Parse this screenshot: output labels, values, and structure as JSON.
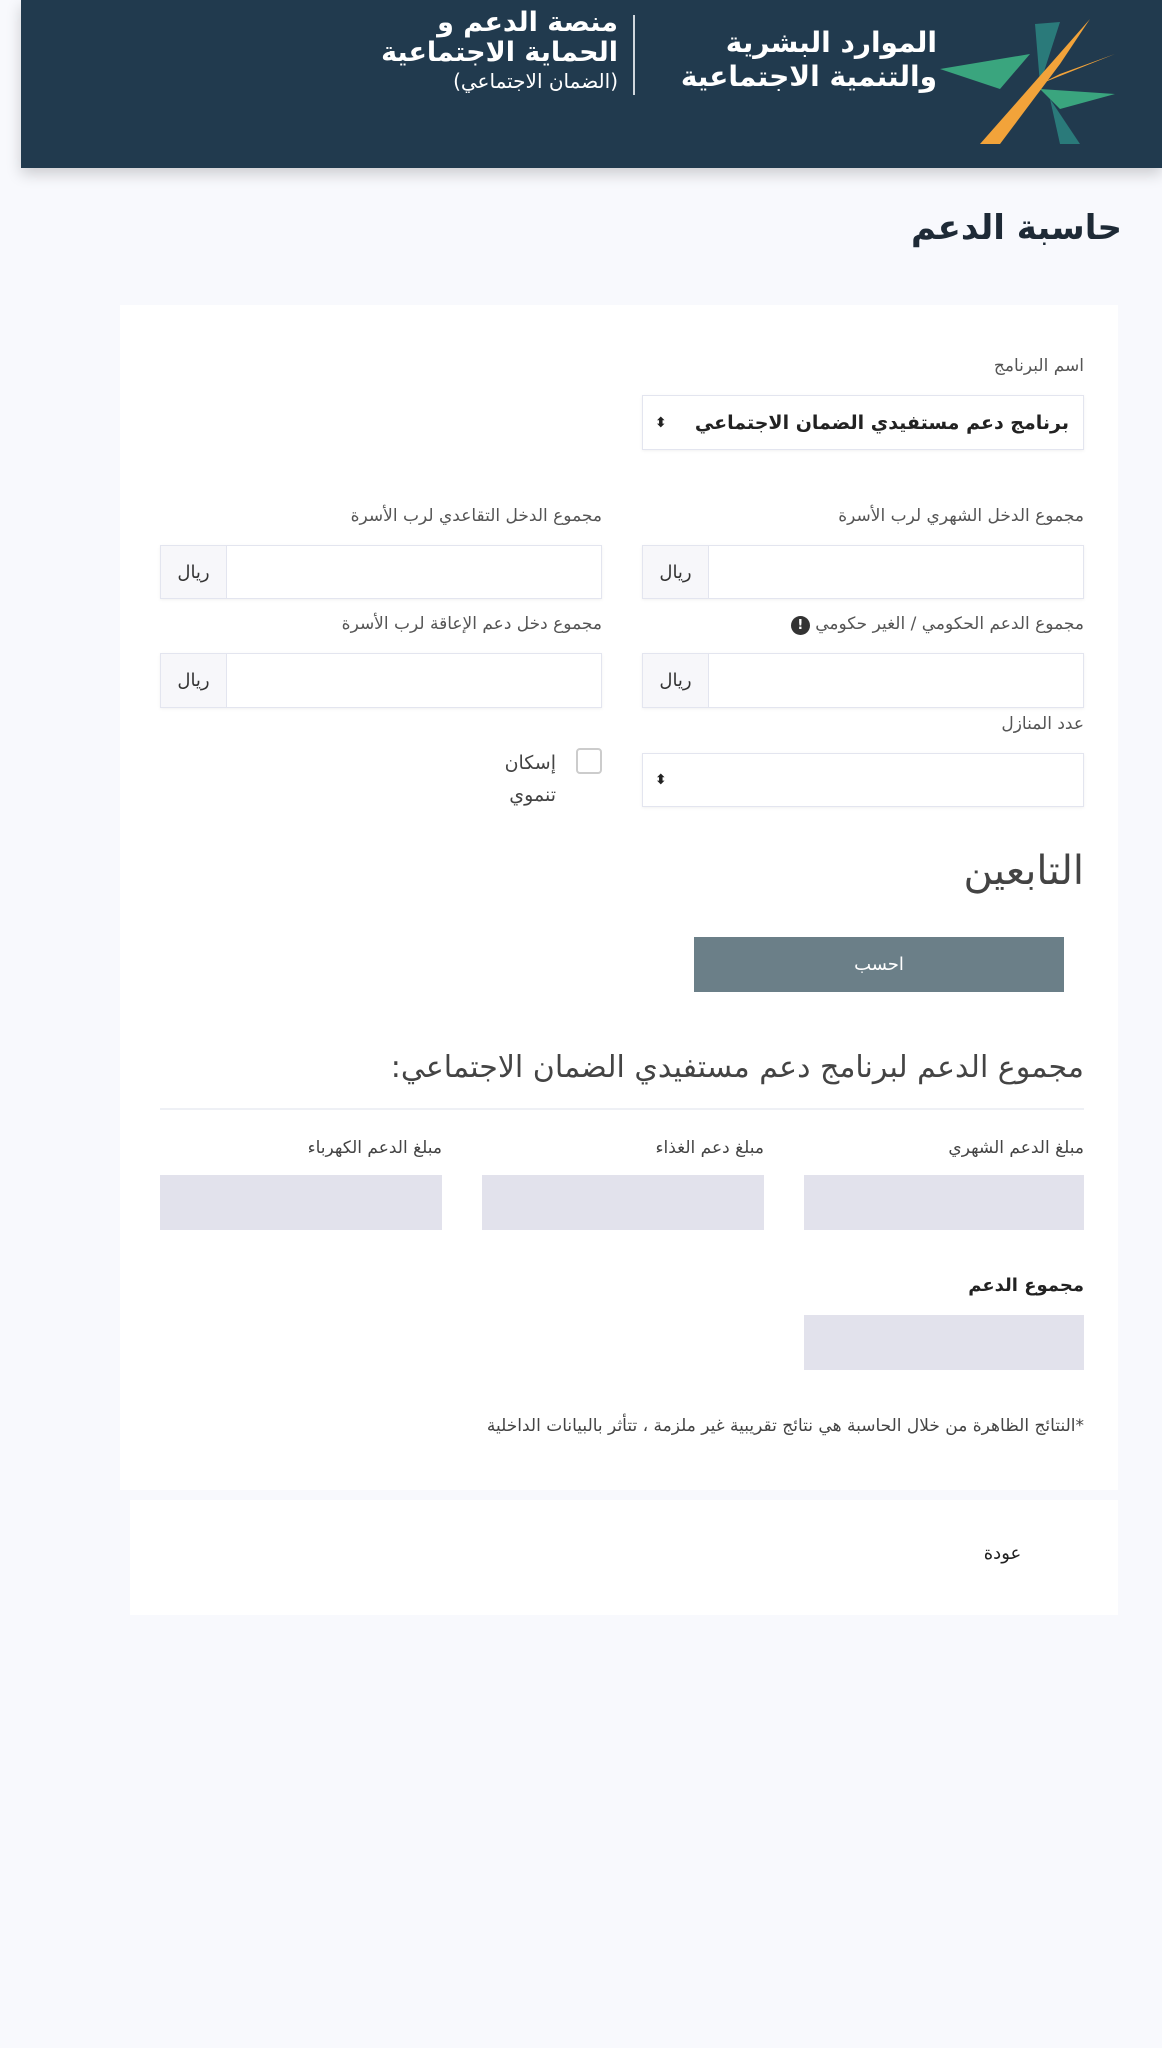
{
  "header": {
    "logo_title": [
      "الموارد البشرية",
      "والتنمية الاجتماعية"
    ],
    "platform_title": [
      "منصة الدعم و",
      "الحماية الاجتماعية"
    ],
    "platform_sub": "(الضمان الاجتماعي)",
    "colors": {
      "bg": "#213a4e",
      "logo_orange": "#f2a33a",
      "logo_green": "#3aa57e",
      "logo_teal": "#2a7a7a"
    }
  },
  "page_title": "حاسبة الدعم",
  "form": {
    "program_label": "اسم البرنامج",
    "program_value": "برنامج دعم مستفيدي الضمان الاجتماعي",
    "monthly_income_label": "مجموع الدخل الشهري لرب الأسرة",
    "retirement_income_label": "مجموع الدخل التقاعدي لرب الأسرة",
    "gov_support_label": "مجموع الدعم الحكومي / الغير حكومي",
    "disability_income_label": "مجموع دخل دعم الإعاقة لرب الأسرة",
    "unit": "ريال",
    "houses_label": "عدد المنازل",
    "houses_value": "",
    "housing_checkbox_label": "إسكان تنموي",
    "housing_checked": false,
    "dependents_heading": "التابعين",
    "calculate_label": "احسب"
  },
  "results": {
    "heading": "مجموع الدعم لبرنامج دعم مستفيدي الضمان الاجتماعي:",
    "monthly_label": "مبلغ الدعم الشهري",
    "food_label": "مبلغ دعم الغذاء",
    "electricity_label": "مبلغ الدعم الكهرباء",
    "total_label": "مجموع الدعم",
    "disclaimer": "*النتائج الظاهرة من خلال الحاسبة هي نتائج تقريبية غير ملزمة ، تتأثر بالبيانات الداخلية"
  },
  "back_label": "عودة"
}
